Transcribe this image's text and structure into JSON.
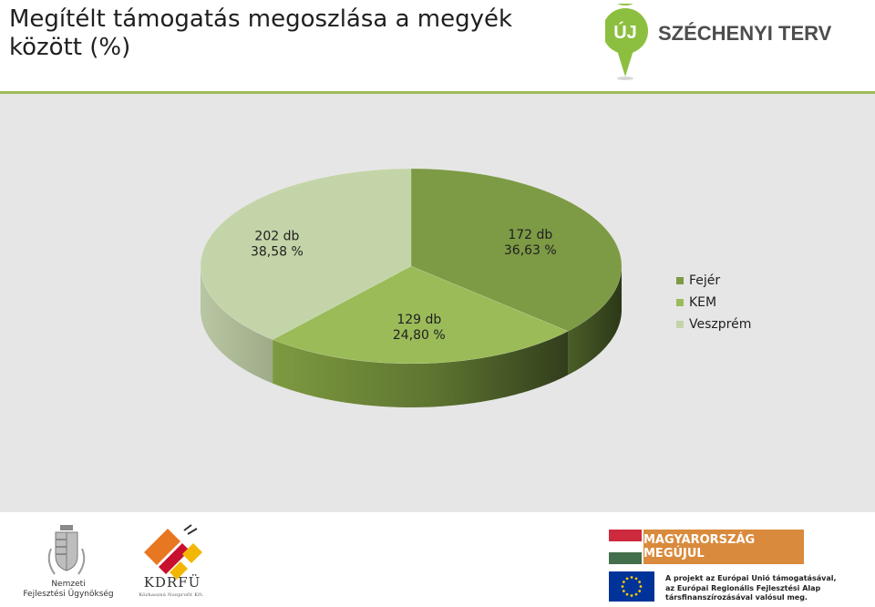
{
  "header": {
    "title": "Megítélt támogatás megoszlása a megyék között (%)",
    "logo_text": "SZÉCHENYI TERV",
    "logo_badge": "ÚJ"
  },
  "chart_data": {
    "type": "pie",
    "title": "",
    "slices": [
      {
        "name": "Fejér",
        "count": "172 db",
        "value": 36.63,
        "label": "36,63 %",
        "color": "#7d9a45"
      },
      {
        "name": "KEM",
        "count": "129 db",
        "value": 24.8,
        "label": "24,80 %",
        "color": "#9bbb59"
      },
      {
        "name": "Veszprém",
        "count": "202 db",
        "value": 38.58,
        "label": "38,58 %",
        "color": "#c3d5a8"
      }
    ],
    "legend_position": "right"
  },
  "footer": {
    "nfu_line1": "Nemzeti",
    "nfu_line2": "Fejlesztési Ügynökség",
    "kdrfu_name": "KDRFÜ",
    "kdrfu_sub": "Közhasznú Nonprofit Kft.",
    "mm_label": "MAGYARORSZÁG MEGÚJUL",
    "eu_line1": "A projekt az Európai Unió támogatásával,",
    "eu_line2": "az Európai Regionális Fejlesztési Alap",
    "eu_line3": "társfinanszírozásával valósul meg."
  },
  "colors": {
    "accent_green": "#9bbb59",
    "chart_background": "#e6e6e6",
    "mm_orange": "#d98a3c"
  }
}
